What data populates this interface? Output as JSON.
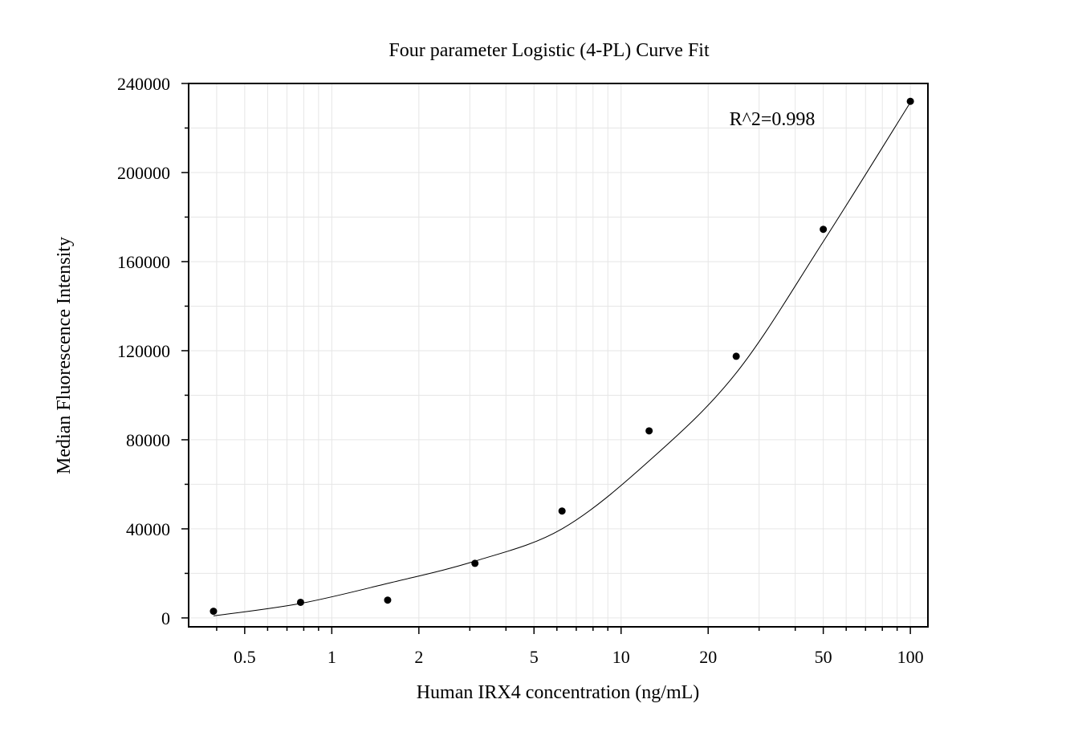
{
  "chart_data": {
    "type": "scatter",
    "title": "Four parameter Logistic (4-PL) Curve Fit",
    "xlabel": "Human IRX4 concentration (ng/mL)",
    "ylabel": "Median Fluorescence Intensity",
    "x_scale": "log",
    "xlim": [
      0.32,
      115
    ],
    "ylim": [
      -4000,
      240000
    ],
    "x_ticks": [
      0.5,
      1,
      2,
      5,
      10,
      20,
      50,
      100
    ],
    "x_tick_labels": [
      "0.5",
      "1",
      "2",
      "5",
      "10",
      "20",
      "50",
      "100"
    ],
    "y_ticks": [
      0,
      40000,
      80000,
      120000,
      160000,
      200000,
      240000
    ],
    "y_tick_labels": [
      "0",
      "40000",
      "80000",
      "120000",
      "160000",
      "200000",
      "240000"
    ],
    "grid": true,
    "annotation": "R^2=0.998",
    "points": {
      "x": [
        0.39,
        0.78,
        1.56,
        3.125,
        6.25,
        12.5,
        25,
        50,
        100
      ],
      "y": [
        3000,
        7000,
        8000,
        24500,
        48000,
        84000,
        117500,
        174500,
        232000
      ]
    },
    "fit_curve": {
      "x": [
        0.39,
        0.78,
        1.56,
        3.125,
        6.25,
        12.5,
        25,
        50,
        100
      ],
      "y": [
        900,
        6500,
        15500,
        25500,
        40000,
        70500,
        110000,
        169000,
        231500
      ]
    }
  }
}
